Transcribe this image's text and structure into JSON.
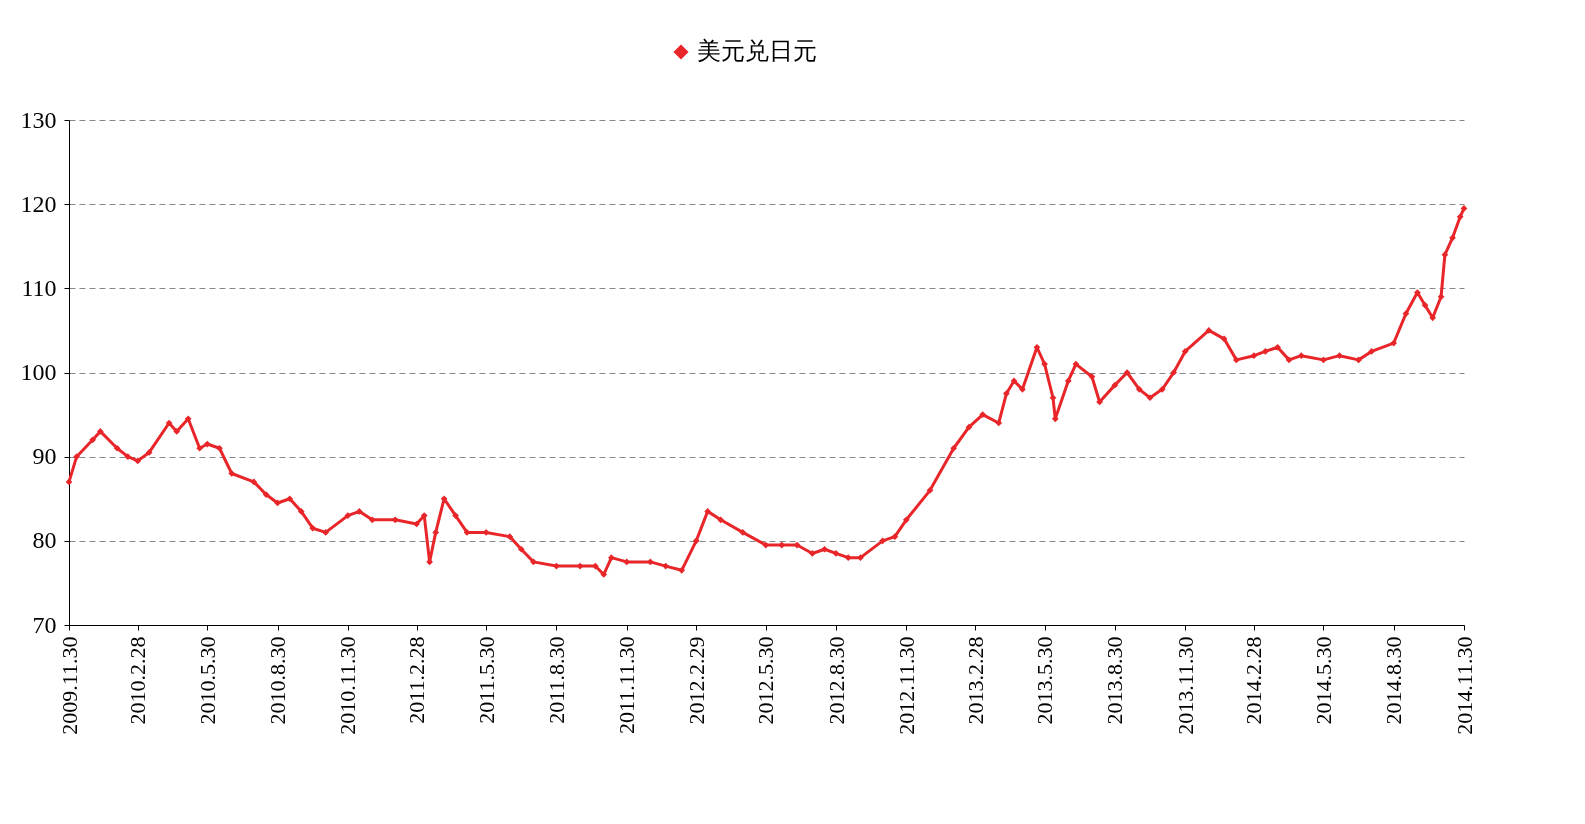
{
  "chart_data": {
    "type": "line",
    "legend": "top",
    "marker": "diamond",
    "line_style": "solid",
    "grid": "y",
    "ylim": [
      70,
      130
    ],
    "yticks": [
      70,
      80,
      90,
      100,
      110,
      120,
      130
    ],
    "xlim": [
      "2009-11-30",
      "2014-11-30"
    ],
    "xticks": [
      {
        "value": "2009-11-30",
        "label": "2009.11.30"
      },
      {
        "value": "2010-02-28",
        "label": "2010.2.28"
      },
      {
        "value": "2010-05-30",
        "label": "2010.5.30"
      },
      {
        "value": "2010-08-30",
        "label": "2010.8.30"
      },
      {
        "value": "2010-11-30",
        "label": "2010.11.30"
      },
      {
        "value": "2011-02-28",
        "label": "2011.2.28"
      },
      {
        "value": "2011-05-30",
        "label": "2011.5.30"
      },
      {
        "value": "2011-08-30",
        "label": "2011.8.30"
      },
      {
        "value": "2011-11-30",
        "label": "2011.11.30"
      },
      {
        "value": "2012-02-29",
        "label": "2012.2.29"
      },
      {
        "value": "2012-05-30",
        "label": "2012.5.30"
      },
      {
        "value": "2012-08-30",
        "label": "2012.8.30"
      },
      {
        "value": "2012-11-30",
        "label": "2012.11.30"
      },
      {
        "value": "2013-02-28",
        "label": "2013.2.28"
      },
      {
        "value": "2013-05-30",
        "label": "2013.5.30"
      },
      {
        "value": "2013-08-30",
        "label": "2013.8.30"
      },
      {
        "value": "2013-11-30",
        "label": "2013.11.30"
      },
      {
        "value": "2014-02-28",
        "label": "2014.2.28"
      },
      {
        "value": "2014-05-30",
        "label": "2014.5.30"
      },
      {
        "value": "2014-08-30",
        "label": "2014.8.30"
      },
      {
        "value": "2014-11-30",
        "label": "2014.11.30"
      }
    ],
    "x": [
      "2009-11-30",
      "2009-12-10",
      "2009-12-31",
      "2010-01-10",
      "2010-02-01",
      "2010-02-15",
      "2010-02-28",
      "2010-03-15",
      "2010-04-10",
      "2010-04-20",
      "2010-05-05",
      "2010-05-20",
      "2010-05-30",
      "2010-06-15",
      "2010-07-01",
      "2010-07-30",
      "2010-08-15",
      "2010-08-30",
      "2010-09-15",
      "2010-09-30",
      "2010-10-15",
      "2010-11-01",
      "2010-11-30",
      "2010-12-15",
      "2011-01-01",
      "2011-01-31",
      "2011-02-28",
      "2011-03-10",
      "2011-03-17",
      "2011-03-25",
      "2011-04-05",
      "2011-04-20",
      "2011-05-05",
      "2011-05-30",
      "2011-06-30",
      "2011-07-15",
      "2011-07-31",
      "2011-08-30",
      "2011-09-30",
      "2011-10-20",
      "2011-10-31",
      "2011-11-10",
      "2011-11-30",
      "2011-12-31",
      "2012-01-20",
      "2012-02-10",
      "2012-02-29",
      "2012-03-15",
      "2012-04-01",
      "2012-04-30",
      "2012-05-30",
      "2012-06-20",
      "2012-07-10",
      "2012-07-30",
      "2012-08-15",
      "2012-08-30",
      "2012-09-15",
      "2012-10-01",
      "2012-10-30",
      "2012-11-15",
      "2012-11-30",
      "2012-12-31",
      "2013-01-31",
      "2013-02-20",
      "2013-03-10",
      "2013-03-31",
      "2013-04-10",
      "2013-04-20",
      "2013-05-01",
      "2013-05-20",
      "2013-05-30",
      "2013-06-10",
      "2013-06-13",
      "2013-06-30",
      "2013-07-10",
      "2013-07-31",
      "2013-08-10",
      "2013-08-30",
      "2013-09-15",
      "2013-10-01",
      "2013-10-15",
      "2013-10-31",
      "2013-11-15",
      "2013-11-30",
      "2013-12-31",
      "2014-01-20",
      "2014-02-05",
      "2014-02-28",
      "2014-03-15",
      "2014-03-31",
      "2014-04-15",
      "2014-05-01",
      "2014-05-30",
      "2014-06-20",
      "2014-07-15",
      "2014-08-01",
      "2014-08-30",
      "2014-09-15",
      "2014-09-30",
      "2014-10-10",
      "2014-10-20",
      "2014-10-31",
      "2014-11-05",
      "2014-11-15",
      "2014-11-25",
      "2014-11-30"
    ],
    "series": [
      {
        "name": "美元兑日元",
        "color": "#e8262a",
        "values": [
          87,
          90,
          92,
          93,
          91,
          90,
          89.5,
          90.5,
          94,
          93,
          94.5,
          91,
          91.5,
          91,
          88,
          87,
          85.5,
          84.5,
          85,
          83.5,
          81.5,
          81,
          83,
          83.5,
          82.5,
          82.5,
          82,
          83,
          77.5,
          81,
          85,
          83,
          81,
          81,
          80.5,
          79,
          77.5,
          77,
          77,
          77,
          76,
          78,
          77.5,
          77.5,
          77,
          76.5,
          80,
          83.5,
          82.5,
          81,
          79.5,
          79.5,
          79.5,
          78.5,
          79,
          78.5,
          78,
          78,
          80,
          80.5,
          82.5,
          86,
          91,
          93.5,
          95,
          94,
          97.5,
          99,
          98,
          103,
          101,
          97,
          94.5,
          99,
          101,
          99.5,
          96.5,
          98.5,
          100,
          98,
          97,
          98,
          100,
          102.5,
          105,
          104,
          101.5,
          102,
          102.5,
          103,
          101.5,
          102,
          101.5,
          102,
          101.5,
          102.5,
          103.5,
          107,
          109.5,
          108,
          106.5,
          109,
          114,
          116,
          118.5,
          119.5
        ]
      }
    ]
  }
}
